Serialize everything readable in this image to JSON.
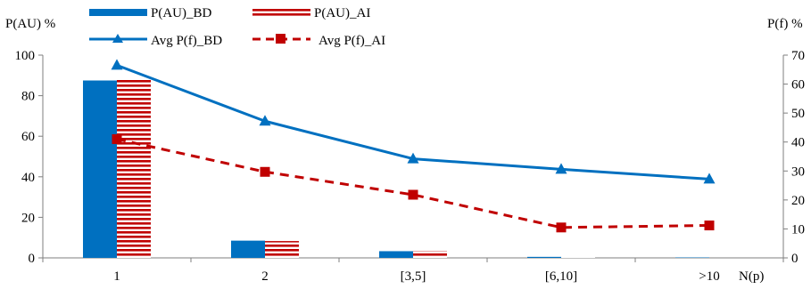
{
  "chart_data": {
    "type": "bar",
    "categories": [
      "1",
      "2",
      "[3,5]",
      "[6,10]",
      ">10"
    ],
    "xlabel": "N(p)",
    "ylabel_left": "P(AU) %",
    "ylabel_right": "P(f) %",
    "ylim_left": [
      0,
      100
    ],
    "ylim_right": [
      0,
      70
    ],
    "yticks_left": [
      "0",
      "20",
      "40",
      "60",
      "80",
      "100"
    ],
    "yticks_right": [
      "0",
      "10",
      "20",
      "30",
      "40",
      "50",
      "60",
      "70"
    ],
    "legend_position": "top",
    "series": [
      {
        "name": "P(AU)_BD",
        "kind": "bar",
        "axis": "left",
        "color": "#0070C0",
        "pattern": "solid",
        "values": [
          87.5,
          8.5,
          3.3,
          0.5,
          0.2
        ]
      },
      {
        "name": "P(AU)_AI",
        "kind": "bar",
        "axis": "left",
        "color": "#C00000",
        "pattern": "horizontal-stripes",
        "values": [
          88.0,
          8.3,
          3.4,
          0.3,
          0.0
        ]
      },
      {
        "name": "Avg P(f)_BD",
        "kind": "line",
        "axis": "right",
        "color": "#0070C0",
        "marker": "triangle",
        "line_style": "solid",
        "values": [
          66.5,
          47.2,
          34.2,
          30.6,
          27.2
        ]
      },
      {
        "name": "Avg P(f)_AI",
        "kind": "line",
        "axis": "right",
        "color": "#C00000",
        "marker": "square",
        "line_style": "dashed",
        "values": [
          41.0,
          29.7,
          21.8,
          10.5,
          11.2
        ]
      }
    ]
  }
}
